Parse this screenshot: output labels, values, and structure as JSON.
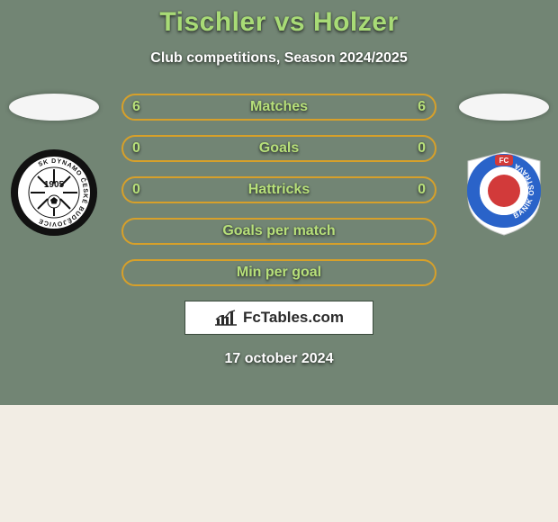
{
  "colors": {
    "page_bg": "#f2ede4",
    "card_bg": "#728574",
    "title_color": "#a8db76",
    "subtitle_color": "#ffffff",
    "bar_border": "#d7a02a",
    "bar_text": "#b7e07a",
    "bar_text_muted": "#516b54",
    "brand_border": "#3a4a3c",
    "brand_text": "#2b2b2b",
    "date_color": "#ffffff",
    "flag_left_bg": "#f5f5f5",
    "flag_right_bg": "#f5f5f5",
    "crest_left_bg": "#ffffff",
    "crest_left_ring": "#111111",
    "crest_left_text": "#111111",
    "crest_right_shield": "#ffffff",
    "crest_right_blue": "#2a63c9",
    "crest_right_red": "#d23a3a",
    "crest_right_text": "#ffffff"
  },
  "title": {
    "player_left": "Tischler",
    "vs": "vs",
    "player_right": "Holzer",
    "fontsize": 30
  },
  "subtitle": "Club competitions, Season 2024/2025",
  "bars": [
    {
      "label": "Matches",
      "left": "6",
      "right": "6"
    },
    {
      "label": "Goals",
      "left": "0",
      "right": "0"
    },
    {
      "label": "Hattricks",
      "left": "0",
      "right": "0"
    },
    {
      "label": "Goals per match",
      "left": "",
      "right": ""
    },
    {
      "label": "Min per goal",
      "left": "",
      "right": ""
    }
  ],
  "brand": "FcTables.com",
  "date": "17 october 2024",
  "crest_left": {
    "year": "1905",
    "ring_text": "SK DYNAMO ČESKÉ BUDĚJOVICE"
  },
  "crest_right": {
    "ring_text": "BANÍK OSTRAVA",
    "fc": "FC"
  }
}
